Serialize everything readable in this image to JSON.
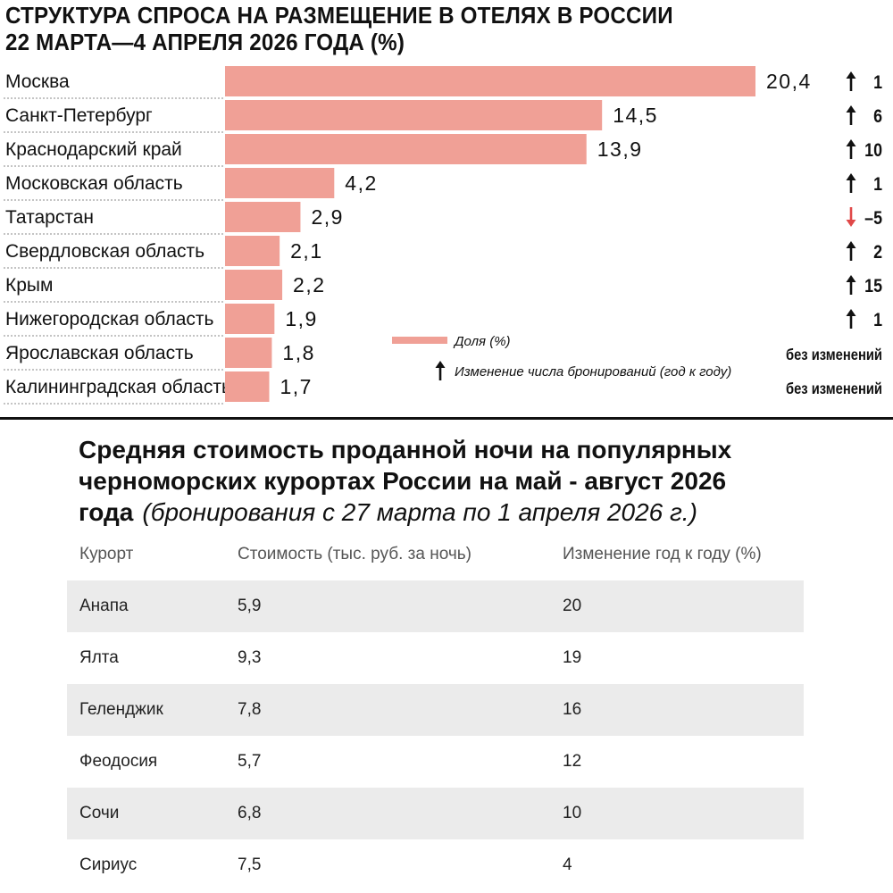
{
  "chart_title": {
    "line1": "СТРУКТУРА СПРОСА НА РАЗМЕЩЕНИЕ В ОТЕЛЯХ В РОССИИ",
    "line2": "22 МАРТА—4 АПРЕЛЯ 2026 ГОДА (%)"
  },
  "chart_data": {
    "type": "bar",
    "orientation": "horizontal",
    "categories": [
      "Москва",
      "Санкт-Петербург",
      "Краснодарский край",
      "Московская область",
      "Татарстан",
      "Свердловская область",
      "Крым",
      "Нижегородская область",
      "Ярославская область",
      "Калининградская область"
    ],
    "values": [
      20.4,
      14.5,
      13.9,
      4.2,
      2.9,
      2.1,
      2.2,
      1.9,
      1.8,
      1.7
    ],
    "value_labels": [
      "20,4",
      "14,5",
      "13,9",
      "4,2",
      "2,9",
      "2,1",
      "2,2",
      "1,9",
      "1,8",
      "1,7"
    ],
    "changes": [
      {
        "direction": "up",
        "text": "1"
      },
      {
        "direction": "up",
        "text": "6"
      },
      {
        "direction": "up",
        "text": "10"
      },
      {
        "direction": "up",
        "text": "1"
      },
      {
        "direction": "down",
        "text": "–5"
      },
      {
        "direction": "up",
        "text": "2"
      },
      {
        "direction": "up",
        "text": "15"
      },
      {
        "direction": "up",
        "text": "1"
      },
      {
        "direction": "none",
        "text": "без изменений"
      },
      {
        "direction": "none",
        "text": "без изменений"
      }
    ],
    "legend": {
      "share_label": "Доля (%)",
      "change_label": "Изменение числа бронирований (год к году)"
    },
    "xlim": [
      0,
      20.4
    ],
    "grid": false
  },
  "colors": {
    "bar": "#f0a096",
    "up_arrow": "#111111",
    "down_arrow": "#e04848",
    "row_shade": "#ebebeb"
  },
  "table": {
    "title": "Средняя стоимость проданной ночи на популярных черноморских курортах России на май - август 2026 года",
    "subtitle": "(бронирования с 27 марта по 1 апреля 2026 г.)",
    "headers": [
      "Курорт",
      "Стоимость (тыс. руб. за ночь)",
      "Изменение год к году (%)"
    ],
    "rows": [
      [
        "Анапа",
        "5,9",
        "20"
      ],
      [
        "Ялта",
        "9,3",
        "19"
      ],
      [
        "Геленджик",
        "7,8",
        "16"
      ],
      [
        "Феодосия",
        "5,7",
        "12"
      ],
      [
        "Сочи",
        "6,8",
        "10"
      ],
      [
        "Сириус",
        "7,5",
        "4"
      ]
    ]
  }
}
